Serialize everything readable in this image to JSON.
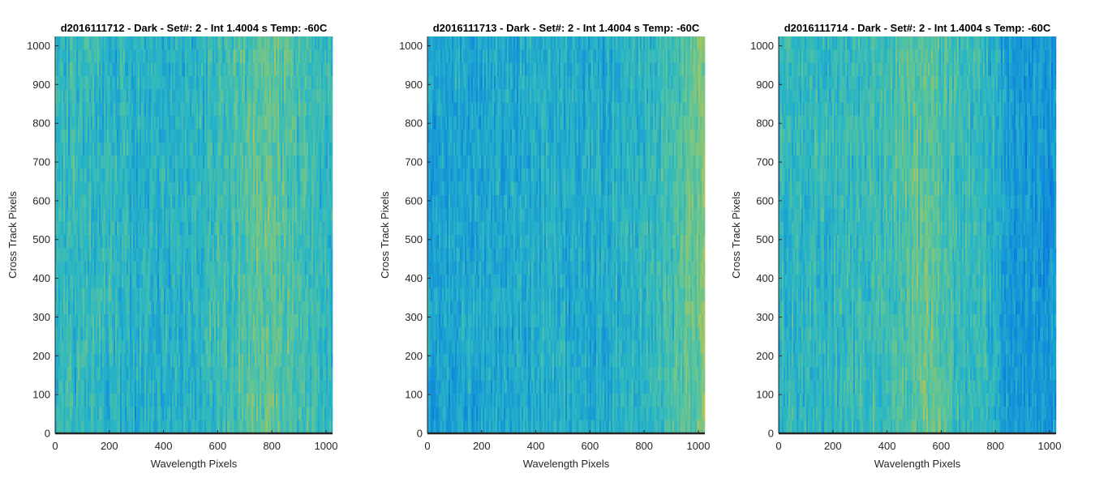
{
  "chart_data": [
    {
      "type": "heatmap",
      "title": "d2016111712 - Dark - Set#: 2 - Int 1.4004 s Temp: -60C",
      "xlabel": "Wavelength Pixels",
      "ylabel": "Cross Track Pixels",
      "xlim": [
        0,
        1024
      ],
      "ylim": [
        0,
        1024
      ],
      "xticks": [
        0,
        200,
        400,
        600,
        800,
        1000
      ],
      "yticks": [
        0,
        100,
        200,
        300,
        400,
        500,
        600,
        700,
        800,
        900,
        1000
      ],
      "colormap": "parula",
      "color_ramp": [
        "#0a72d8",
        "#1595d8",
        "#2ab6c4",
        "#5cc49a",
        "#aac45c",
        "#d8c040"
      ],
      "background_level": 0.4,
      "column_profile": [
        [
          0,
          0.42
        ],
        [
          100,
          0.45
        ],
        [
          250,
          0.38
        ],
        [
          500,
          0.38
        ],
        [
          650,
          0.5
        ],
        [
          780,
          0.6
        ],
        [
          850,
          0.55
        ],
        [
          1024,
          0.42
        ]
      ]
    },
    {
      "type": "heatmap",
      "title": "d2016111713 - Dark - Set#: 2 - Int 1.4004 s Temp: -60C",
      "xlabel": "Wavelength Pixels",
      "ylabel": "Cross Track Pixels",
      "xlim": [
        0,
        1024
      ],
      "ylim": [
        0,
        1024
      ],
      "xticks": [
        0,
        200,
        400,
        600,
        800,
        1000
      ],
      "yticks": [
        0,
        100,
        200,
        300,
        400,
        500,
        600,
        700,
        800,
        900,
        1000
      ],
      "colormap": "parula",
      "color_ramp": [
        "#0a72d8",
        "#1595d8",
        "#2ab6c4",
        "#5cc49a",
        "#aac45c",
        "#d8c040"
      ],
      "background_level": 0.3,
      "column_profile": [
        [
          0,
          0.28
        ],
        [
          200,
          0.3
        ],
        [
          450,
          0.36
        ],
        [
          600,
          0.34
        ],
        [
          800,
          0.4
        ],
        [
          900,
          0.5
        ],
        [
          1024,
          0.7
        ]
      ]
    },
    {
      "type": "heatmap",
      "title": "d2016111714 - Dark - Set#: 2 - Int 1.4004 s Temp: -60C",
      "xlabel": "Wavelength Pixels",
      "ylabel": "Cross Track Pixels",
      "xlim": [
        0,
        1024
      ],
      "ylim": [
        0,
        1024
      ],
      "xticks": [
        0,
        200,
        400,
        600,
        800,
        1000
      ],
      "yticks": [
        0,
        100,
        200,
        300,
        400,
        500,
        600,
        700,
        800,
        900,
        1000
      ],
      "colormap": "parula",
      "color_ramp": [
        "#0a72d8",
        "#1595d8",
        "#2ab6c4",
        "#5cc49a",
        "#aac45c",
        "#d8c040"
      ],
      "background_level": 0.4,
      "column_profile": [
        [
          0,
          0.42
        ],
        [
          200,
          0.42
        ],
        [
          420,
          0.5
        ],
        [
          540,
          0.62
        ],
        [
          650,
          0.5
        ],
        [
          800,
          0.38
        ],
        [
          860,
          0.22
        ],
        [
          1024,
          0.22
        ]
      ]
    }
  ]
}
